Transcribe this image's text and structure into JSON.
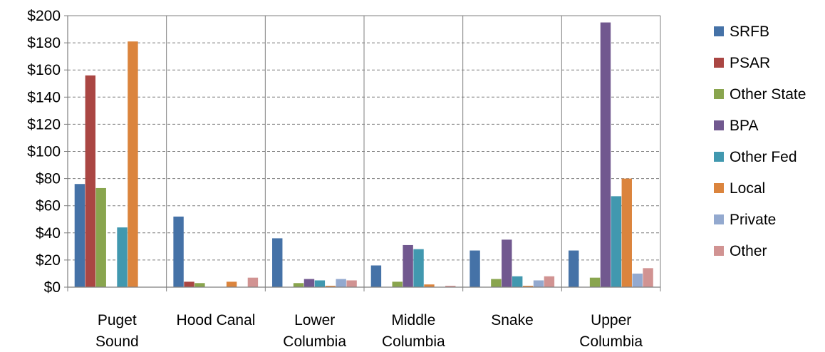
{
  "chart_data": {
    "type": "bar",
    "title": "",
    "xlabel": "",
    "ylabel": "",
    "ylim": [
      0,
      200
    ],
    "yticks": [
      0,
      20,
      40,
      60,
      80,
      100,
      120,
      140,
      160,
      180,
      200
    ],
    "ytick_labels": [
      "$0",
      "$20",
      "$40",
      "$60",
      "$80",
      "$100",
      "$120",
      "$140",
      "$160",
      "$180",
      "$200"
    ],
    "grid": "horizontal dashed",
    "legend_position": "right",
    "categories": [
      [
        "Puget",
        "Sound"
      ],
      [
        "Hood Canal"
      ],
      [
        "Lower",
        "Columbia"
      ],
      [
        "Middle",
        "Columbia"
      ],
      [
        "Snake"
      ],
      [
        "Upper",
        "Columbia"
      ]
    ],
    "series": [
      {
        "name": "SRFB",
        "color": "#4572A7",
        "values": [
          76,
          52,
          36,
          16,
          27,
          27
        ]
      },
      {
        "name": "PSAR",
        "color": "#AA4643",
        "values": [
          156,
          4,
          0,
          0,
          0,
          0
        ]
      },
      {
        "name": "Other State",
        "color": "#89A54E",
        "values": [
          73,
          3,
          3,
          4,
          6,
          7
        ]
      },
      {
        "name": "BPA",
        "color": "#71588F",
        "values": [
          0,
          0,
          6,
          31,
          35,
          195
        ]
      },
      {
        "name": "Other Fed",
        "color": "#4198AF",
        "values": [
          44,
          0,
          5,
          28,
          8,
          67
        ]
      },
      {
        "name": "Local",
        "color": "#DB843D",
        "values": [
          181,
          4,
          1,
          2,
          1,
          80
        ]
      },
      {
        "name": "Private",
        "color": "#93A9CF",
        "values": [
          0,
          0,
          6,
          0,
          5,
          10
        ]
      },
      {
        "name": "Other",
        "color": "#D19392",
        "values": [
          0,
          7,
          5,
          1,
          8,
          14
        ]
      }
    ]
  }
}
